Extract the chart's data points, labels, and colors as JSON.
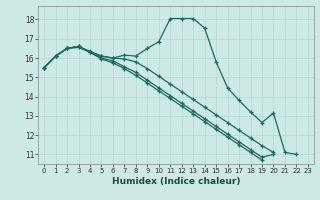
{
  "title": "",
  "xlabel": "Humidex (Indice chaleur)",
  "background_color": "#cce9e4",
  "grid_color": "#b0d8d2",
  "line_color": "#1a6b5e",
  "xlim": [
    -0.5,
    23.5
  ],
  "ylim": [
    10.5,
    18.7
  ],
  "xticks": [
    0,
    1,
    2,
    3,
    4,
    5,
    6,
    7,
    8,
    9,
    10,
    11,
    12,
    13,
    14,
    15,
    16,
    17,
    18,
    19,
    20,
    21,
    22,
    23
  ],
  "yticks": [
    11,
    12,
    13,
    14,
    15,
    16,
    17,
    18
  ],
  "lines": [
    {
      "x": [
        0,
        1,
        2,
        3,
        4,
        5,
        6,
        7,
        8,
        9,
        10,
        11,
        12,
        13,
        14,
        15,
        16,
        17,
        18,
        19,
        20,
        21,
        22
      ],
      "y": [
        15.5,
        16.1,
        16.5,
        16.6,
        16.3,
        16.1,
        16.0,
        16.15,
        16.1,
        16.5,
        16.85,
        18.05,
        18.05,
        18.05,
        17.55,
        15.8,
        14.45,
        13.8,
        13.2,
        12.65,
        13.15,
        11.1,
        11.0
      ]
    },
    {
      "x": [
        0,
        1,
        2,
        3,
        4,
        5,
        6,
        7,
        8,
        9,
        10,
        11,
        12,
        13,
        14,
        15,
        16,
        17,
        18,
        19,
        20,
        21
      ],
      "y": [
        15.5,
        16.1,
        16.5,
        16.6,
        16.3,
        16.0,
        15.85,
        15.55,
        15.25,
        14.85,
        14.45,
        14.05,
        13.65,
        13.25,
        12.85,
        12.45,
        12.05,
        11.65,
        11.25,
        10.85,
        11.0,
        null
      ]
    },
    {
      "x": [
        0,
        1,
        2,
        3,
        4,
        5,
        6,
        7,
        8,
        9,
        10,
        11,
        12,
        13,
        14,
        15,
        16,
        17,
        18,
        19
      ],
      "y": [
        15.5,
        16.1,
        16.5,
        16.55,
        16.3,
        15.95,
        15.75,
        15.45,
        15.1,
        14.7,
        14.3,
        13.9,
        13.5,
        13.1,
        12.7,
        12.3,
        11.9,
        11.5,
        11.1,
        10.7
      ]
    },
    {
      "x": [
        0,
        1,
        2,
        3,
        4,
        5,
        6,
        7,
        8,
        9,
        10,
        11,
        12,
        13,
        14,
        15,
        16,
        17,
        18,
        19,
        20
      ],
      "y": [
        15.5,
        16.1,
        16.5,
        16.6,
        16.35,
        16.1,
        16.0,
        15.95,
        15.8,
        15.45,
        15.05,
        14.65,
        14.25,
        13.85,
        13.45,
        13.05,
        12.65,
        12.25,
        11.85,
        11.45,
        11.1
      ]
    }
  ]
}
